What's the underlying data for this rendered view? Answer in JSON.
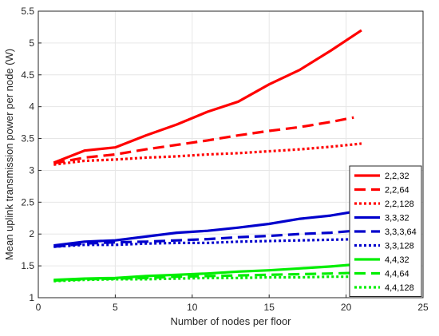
{
  "chart_data": {
    "type": "line",
    "title": "",
    "xlabel": "Number of nodes per floor",
    "ylabel": "Mean uplink transmission power per node (W)",
    "xlim": [
      0,
      25
    ],
    "ylim": [
      1,
      5.5
    ],
    "xticks": [
      0,
      5,
      10,
      15,
      20,
      25
    ],
    "yticks": [
      1,
      1.5,
      2,
      2.5,
      3,
      3.5,
      4,
      4.5,
      5,
      5.5
    ],
    "xtick_labels": [
      "0",
      "5",
      "10",
      "15",
      "20",
      "25"
    ],
    "ytick_labels": [
      "1",
      "1.5",
      "2",
      "2.5",
      "3",
      "3.5",
      "4",
      "4.5",
      "5",
      "5.5"
    ],
    "grid": true,
    "legend_position": "right",
    "series": [
      {
        "name": "2,2,32",
        "color": "#ff0000",
        "style": "solid",
        "x": [
          1,
          3,
          5,
          7,
          9,
          11,
          13,
          15,
          17,
          19,
          21
        ],
        "y": [
          3.12,
          3.31,
          3.36,
          3.55,
          3.72,
          3.92,
          4.08,
          4.35,
          4.58,
          4.88,
          5.2
        ]
      },
      {
        "name": "2,2,64",
        "color": "#ff0000",
        "style": "dashed",
        "x": [
          1,
          3,
          5,
          7,
          9,
          11,
          13,
          15,
          17,
          19,
          20.5
        ],
        "y": [
          3.11,
          3.2,
          3.25,
          3.33,
          3.4,
          3.47,
          3.55,
          3.62,
          3.68,
          3.76,
          3.83
        ]
      },
      {
        "name": "2,2,128",
        "color": "#ff0000",
        "style": "dotted",
        "x": [
          1,
          3,
          5,
          7,
          9,
          11,
          13,
          15,
          17,
          19,
          21
        ],
        "y": [
          3.09,
          3.15,
          3.17,
          3.2,
          3.22,
          3.25,
          3.27,
          3.3,
          3.33,
          3.37,
          3.42
        ]
      },
      {
        "name": "3,3,32",
        "color": "#0000cc",
        "style": "solid",
        "x": [
          1,
          3,
          5,
          7,
          9,
          11,
          13,
          15,
          17,
          19,
          21
        ],
        "y": [
          1.82,
          1.88,
          1.9,
          1.96,
          2.02,
          2.05,
          2.1,
          2.16,
          2.24,
          2.29,
          2.37
        ]
      },
      {
        "name": "3,3,3,64",
        "color": "#0000cc",
        "style": "dashed",
        "x": [
          1,
          3,
          5,
          7,
          9,
          11,
          13,
          15,
          17,
          19,
          20.5
        ],
        "y": [
          1.8,
          1.85,
          1.87,
          1.88,
          1.9,
          1.92,
          1.95,
          1.97,
          2.0,
          2.02,
          2.05
        ]
      },
      {
        "name": "3,3,128",
        "color": "#0000cc",
        "style": "dotted",
        "x": [
          1,
          3,
          5,
          7,
          9,
          11,
          13,
          15,
          17,
          19,
          21
        ],
        "y": [
          1.8,
          1.83,
          1.83,
          1.85,
          1.86,
          1.86,
          1.88,
          1.89,
          1.9,
          1.91,
          1.92
        ]
      },
      {
        "name": "4,4,32",
        "color": "#00ee00",
        "style": "solid",
        "x": [
          1,
          3,
          5,
          7,
          9,
          11,
          13,
          15,
          17,
          19,
          21
        ],
        "y": [
          1.28,
          1.3,
          1.31,
          1.34,
          1.36,
          1.38,
          1.41,
          1.43,
          1.46,
          1.49,
          1.53
        ]
      },
      {
        "name": "4,4,64",
        "color": "#00ee00",
        "style": "dashed",
        "x": [
          1,
          3,
          5,
          7,
          9,
          11,
          13,
          15,
          17,
          19,
          20.5
        ],
        "y": [
          1.27,
          1.29,
          1.3,
          1.31,
          1.33,
          1.34,
          1.35,
          1.36,
          1.37,
          1.38,
          1.39
        ]
      },
      {
        "name": "4,4,128",
        "color": "#00ee00",
        "style": "dotted",
        "x": [
          1,
          3,
          5,
          7,
          9,
          11,
          13,
          15,
          17,
          19,
          21
        ],
        "y": [
          1.26,
          1.28,
          1.29,
          1.29,
          1.3,
          1.31,
          1.31,
          1.32,
          1.32,
          1.33,
          1.33
        ]
      }
    ]
  }
}
